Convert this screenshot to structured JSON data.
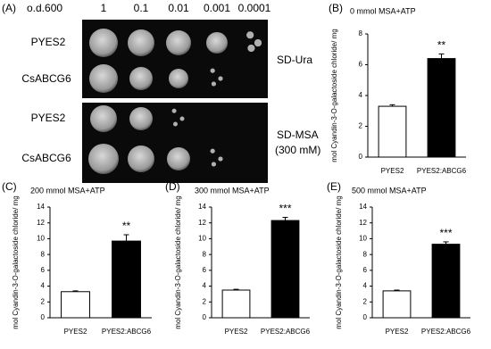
{
  "panel_a": {
    "label": "(A)",
    "od_label": "o.d.600",
    "dilutions": [
      "1",
      "0.1",
      "0.01",
      "0.001",
      "0.0001"
    ],
    "top_rows": [
      "PYES2",
      "CsABCG6"
    ],
    "top_medium": "SD-Ura",
    "bottom_rows": [
      "PYES2",
      "CsABCG6"
    ],
    "bottom_medium": "SD-MSA",
    "bottom_medium_note": "(300 mM)"
  },
  "chart_data": [
    {
      "type": "bar",
      "label": "(B)",
      "title": "0 mmol MSA+ATP",
      "y_label": "mol Cyandin-3-O-galactoside  chloride/ mg",
      "categories": [
        "PYES2",
        "PYES2:ABCG6"
      ],
      "values": [
        3.3,
        6.4
      ],
      "errors": [
        0.1,
        0.3
      ],
      "colors": [
        "#ffffff",
        "#000000"
      ],
      "significance": [
        null,
        "**"
      ],
      "ylim": [
        0,
        8
      ],
      "yticks": [
        0,
        2,
        4,
        6,
        8
      ]
    },
    {
      "type": "bar",
      "label": "(C)",
      "title": "200 mmol MSA+ATP",
      "y_label": "mol Cyandin-3-O-galactoside  chloride/ mg",
      "categories": [
        "PYES2",
        "PYES2:ABCG6"
      ],
      "values": [
        3.3,
        9.7
      ],
      "errors": [
        0.1,
        0.8
      ],
      "colors": [
        "#ffffff",
        "#000000"
      ],
      "significance": [
        null,
        "**"
      ],
      "ylim": [
        0,
        14
      ],
      "yticks": [
        0,
        2,
        4,
        6,
        8,
        10,
        12,
        14
      ]
    },
    {
      "type": "bar",
      "label": "(D)",
      "title": "300 mmol MSA+ATP",
      "y_label": "mol Cyandin-3-O-galactoside  chloride/ mg",
      "categories": [
        "PYES2",
        "PYES2:ABCG6"
      ],
      "values": [
        3.5,
        12.3
      ],
      "errors": [
        0.1,
        0.4
      ],
      "colors": [
        "#ffffff",
        "#000000"
      ],
      "significance": [
        null,
        "***"
      ],
      "ylim": [
        0,
        14
      ],
      "yticks": [
        0,
        2,
        4,
        6,
        8,
        10,
        12,
        14
      ]
    },
    {
      "type": "bar",
      "label": "(E)",
      "title": "500 mmol MSA+ATP",
      "y_label": "mol Cyandin-3-O-galactoside  chloride/ mg",
      "categories": [
        "PYES2",
        "PYES2:ABCG6"
      ],
      "values": [
        3.4,
        9.3
      ],
      "errors": [
        0.1,
        0.3
      ],
      "colors": [
        "#ffffff",
        "#000000"
      ],
      "significance": [
        null,
        "***"
      ],
      "ylim": [
        0,
        14
      ],
      "yticks": [
        0,
        2,
        4,
        6,
        8,
        10,
        12,
        14
      ]
    }
  ]
}
